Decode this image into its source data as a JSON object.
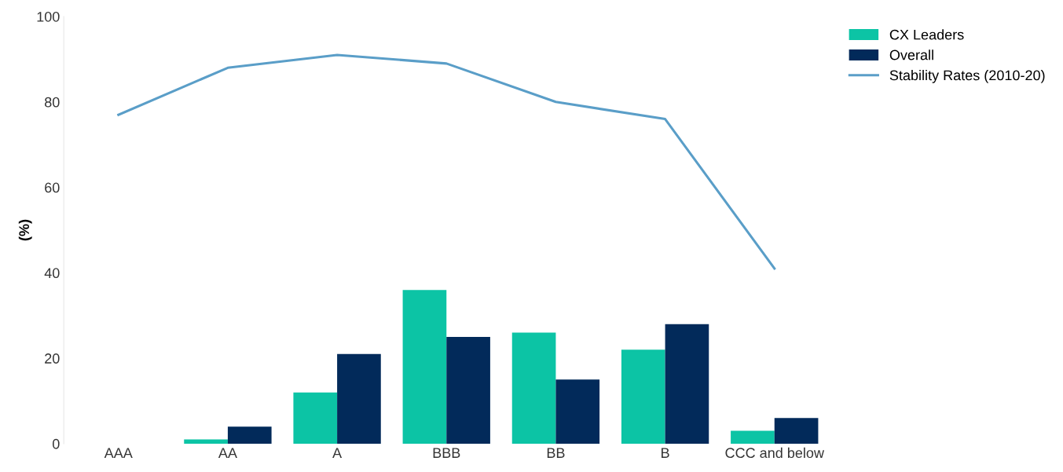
{
  "chart_data": {
    "type": "bar",
    "ylabel": "(%)",
    "categories": [
      "AAA",
      "AA",
      "A",
      "BBB",
      "BB",
      "B",
      "CCC and below"
    ],
    "series": [
      {
        "name": "CX Leaders",
        "color": "#0cc4a5",
        "values": [
          0,
          1,
          12,
          36,
          26,
          22,
          3
        ]
      },
      {
        "name": "Overall",
        "color": "#022a5a",
        "values": [
          0,
          4,
          21,
          25,
          15,
          28,
          6
        ]
      },
      {
        "name": "Stability Rates (2010-20)",
        "type": "line",
        "color": "#5a9ec8",
        "values": [
          77,
          88,
          91,
          89,
          80,
          76,
          41
        ]
      }
    ],
    "ylim": [
      0,
      100
    ],
    "yticks": [
      0,
      20,
      40,
      60,
      80,
      100
    ],
    "grid": false,
    "legend": "top right",
    "marker": "none",
    "line_style": "solid"
  }
}
